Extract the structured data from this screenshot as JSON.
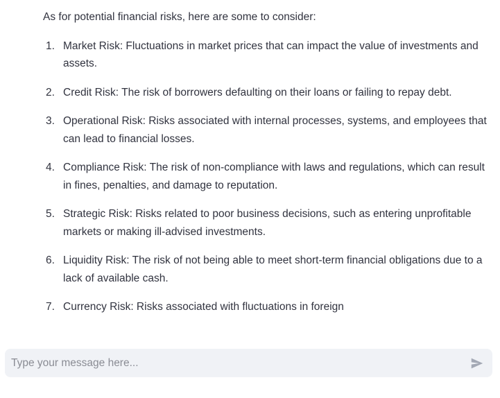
{
  "message": {
    "intro": "As for potential financial risks, here are some to consider:",
    "items": [
      {
        "number": "1.",
        "text": "Market Risk: Fluctuations in market prices that can impact the value of investments and assets."
      },
      {
        "number": "2.",
        "text": "Credit Risk: The risk of borrowers defaulting on their loans or failing to repay debt."
      },
      {
        "number": "3.",
        "text": "Operational Risk: Risks associated with internal processes, systems, and employees that can lead to financial losses."
      },
      {
        "number": "4.",
        "text": "Compliance Risk: The risk of non-compliance with laws and regulations, which can result in fines, penalties, and damage to reputation."
      },
      {
        "number": "5.",
        "text": "Strategic Risk: Risks related to poor business decisions, such as entering unprofitable markets or making ill-advised investments."
      },
      {
        "number": "6.",
        "text": "Liquidity Risk: The risk of not being able to meet short-term financial obligations due to a lack of available cash."
      },
      {
        "number": "7.",
        "text": "Currency Risk: Risks associated with fluctuations in foreign"
      }
    ]
  },
  "chat_input": {
    "value": "",
    "placeholder": "Type your message here..."
  },
  "send_button": {
    "icon": "send-icon",
    "icon_color": "#a3a8b4"
  },
  "colors": {
    "text": "#31333f",
    "input_background": "#f0f2f6",
    "placeholder": "#8a8c94"
  }
}
